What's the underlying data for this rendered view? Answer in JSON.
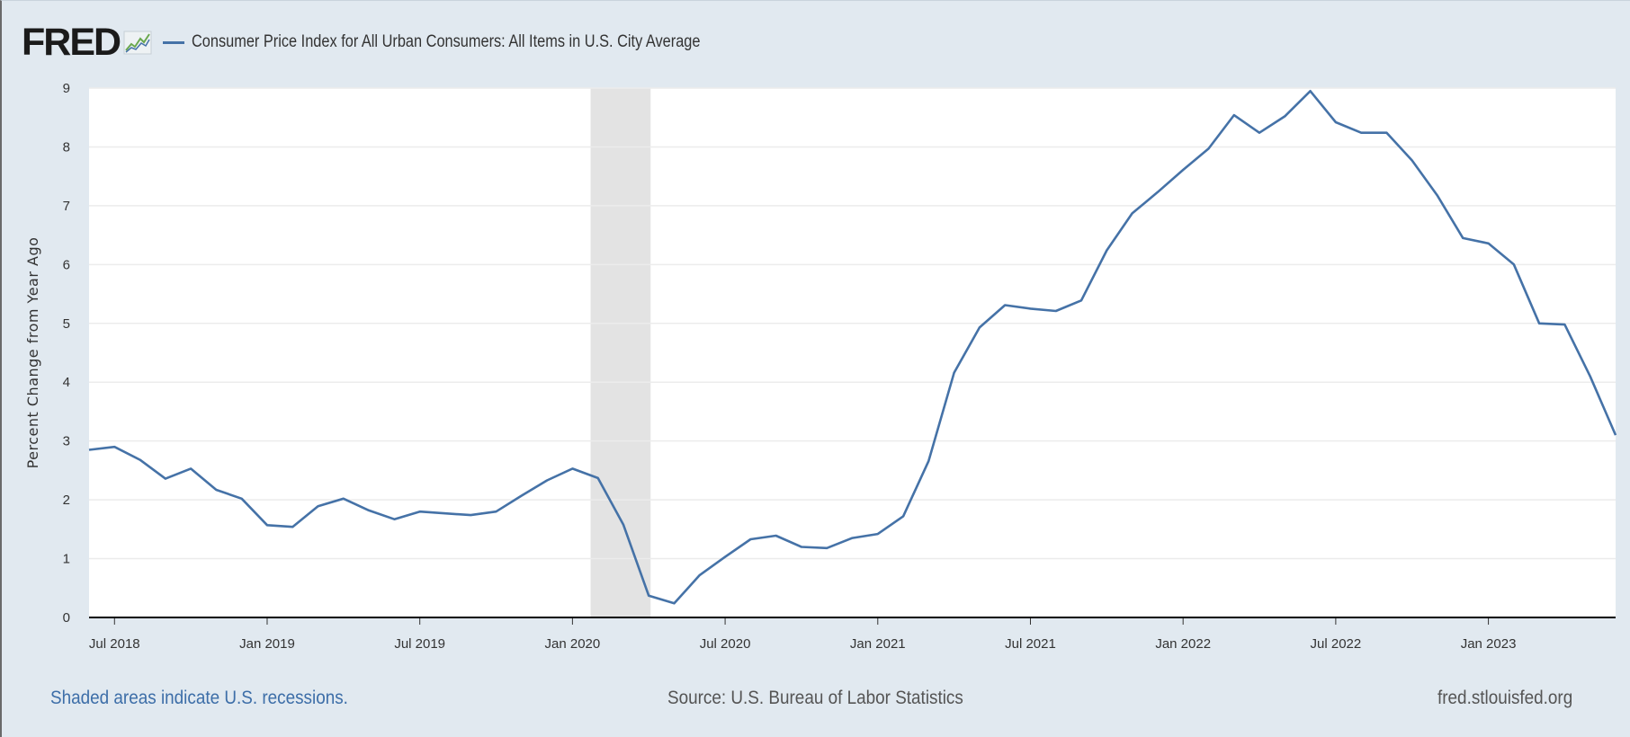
{
  "header": {
    "logo_text": "FRED",
    "logo_icon": "fred-chart-logo-icon"
  },
  "colors": {
    "series": "#4572a7",
    "recession_shade": "#e3e3e3",
    "frame_background": "#e1e9f0",
    "footer_link": "#3d6ea8"
  },
  "chart_data": {
    "type": "line",
    "title": "Consumer Price Index for All Urban Consumers: All Items in U.S. City Average",
    "xlabel": "",
    "ylabel": "Percent Change from Year Ago",
    "ylim": [
      0,
      9
    ],
    "y_ticks": [
      "0",
      "1",
      "2",
      "3",
      "4",
      "5",
      "6",
      "7",
      "8",
      "9"
    ],
    "x_tick_labels": [
      {
        "date": "2018-07",
        "label": "Jul 2018"
      },
      {
        "date": "2019-01",
        "label": "Jan 2019"
      },
      {
        "date": "2019-07",
        "label": "Jul 2019"
      },
      {
        "date": "2020-01",
        "label": "Jan 2020"
      },
      {
        "date": "2020-07",
        "label": "Jul 2020"
      },
      {
        "date": "2021-01",
        "label": "Jan 2021"
      },
      {
        "date": "2021-07",
        "label": "Jul 2021"
      },
      {
        "date": "2022-01",
        "label": "Jan 2022"
      },
      {
        "date": "2022-07",
        "label": "Jul 2022"
      },
      {
        "date": "2023-01",
        "label": "Jan 2023"
      }
    ],
    "x_range": [
      "2018-06",
      "2023-06"
    ],
    "grid": "horizontal",
    "recessions": [
      {
        "start": "2020-02",
        "end": "2020-04"
      }
    ],
    "series": [
      {
        "name": "Consumer Price Index for All Urban Consumers: All Items in U.S. City Average",
        "x": [
          "2018-06",
          "2018-07",
          "2018-08",
          "2018-09",
          "2018-10",
          "2018-11",
          "2018-12",
          "2019-01",
          "2019-02",
          "2019-03",
          "2019-04",
          "2019-05",
          "2019-06",
          "2019-07",
          "2019-08",
          "2019-09",
          "2019-10",
          "2019-11",
          "2019-12",
          "2020-01",
          "2020-02",
          "2020-03",
          "2020-04",
          "2020-05",
          "2020-06",
          "2020-07",
          "2020-08",
          "2020-09",
          "2020-10",
          "2020-11",
          "2020-12",
          "2021-01",
          "2021-02",
          "2021-03",
          "2021-04",
          "2021-05",
          "2021-06",
          "2021-07",
          "2021-08",
          "2021-09",
          "2021-10",
          "2021-11",
          "2021-12",
          "2022-01",
          "2022-02",
          "2022-03",
          "2022-04",
          "2022-05",
          "2022-06",
          "2022-07",
          "2022-08",
          "2022-09",
          "2022-10",
          "2022-11",
          "2022-12",
          "2023-01",
          "2023-02",
          "2023-03",
          "2023-04",
          "2023-05",
          "2023-06"
        ],
        "values": [
          2.85,
          2.9,
          2.68,
          2.36,
          2.53,
          2.17,
          2.02,
          1.57,
          1.54,
          1.89,
          2.02,
          1.82,
          1.67,
          1.8,
          1.77,
          1.74,
          1.8,
          2.07,
          2.33,
          2.53,
          2.37,
          1.58,
          0.37,
          0.24,
          0.72,
          1.03,
          1.33,
          1.39,
          1.2,
          1.18,
          1.35,
          1.42,
          1.72,
          2.66,
          4.16,
          4.93,
          5.31,
          5.25,
          5.21,
          5.39,
          6.24,
          6.87,
          7.23,
          7.61,
          7.97,
          8.54,
          8.24,
          8.52,
          8.95,
          8.42,
          8.24,
          8.24,
          7.77,
          7.17,
          6.45,
          6.36,
          6.0,
          5.0,
          4.98,
          4.1,
          3.1
        ]
      }
    ]
  },
  "footer": {
    "recession_note": "Shaded areas indicate U.S. recessions.",
    "source": "Source: U.S. Bureau of Labor Statistics",
    "site": "fred.stlouisfed.org"
  }
}
